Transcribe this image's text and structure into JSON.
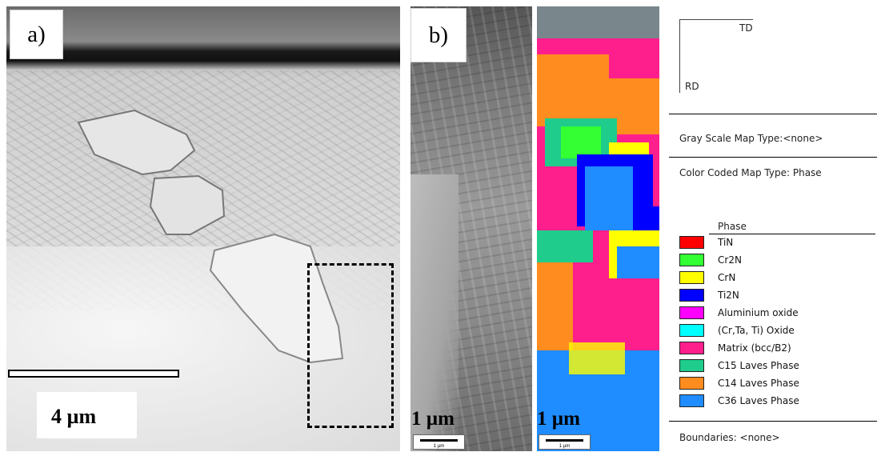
{
  "panel_a": {
    "label": "a)",
    "scale_label": "4 µm"
  },
  "panel_b": {
    "label": "b)",
    "scale_label": "1 µm",
    "mini_scale_label": "1 µm"
  },
  "panel_map": {
    "scale_label": "1 µm",
    "mini_scale_label": "1 µm"
  },
  "legend": {
    "axis_td": "TD",
    "axis_rd": "RD",
    "gray_scale": "Gray Scale Map Type:<none>",
    "color_coded": "Color Coded Map Type: Phase",
    "phase_header": "Phase",
    "boundaries": "Boundaries: <none>",
    "phases": [
      {
        "name": "TiN",
        "color": "#ff0000"
      },
      {
        "name": "Cr2N",
        "color": "#33ff33"
      },
      {
        "name": "CrN",
        "color": "#ffff00"
      },
      {
        "name": "Ti2N",
        "color": "#0000ff"
      },
      {
        "name": "Aluminium oxide",
        "color": "#ff00ff"
      },
      {
        "name": "(Cr,Ta, Ti) Oxide",
        "color": "#00ffff"
      },
      {
        "name": "Matrix (bcc/B2)",
        "color": "#ff1f8c"
      },
      {
        "name": "C15 Laves Phase",
        "color": "#1fcc8c"
      },
      {
        "name": "C14 Laves Phase",
        "color": "#ff8c1f"
      },
      {
        "name": "C36 Laves Phase",
        "color": "#1f8cff"
      }
    ]
  }
}
